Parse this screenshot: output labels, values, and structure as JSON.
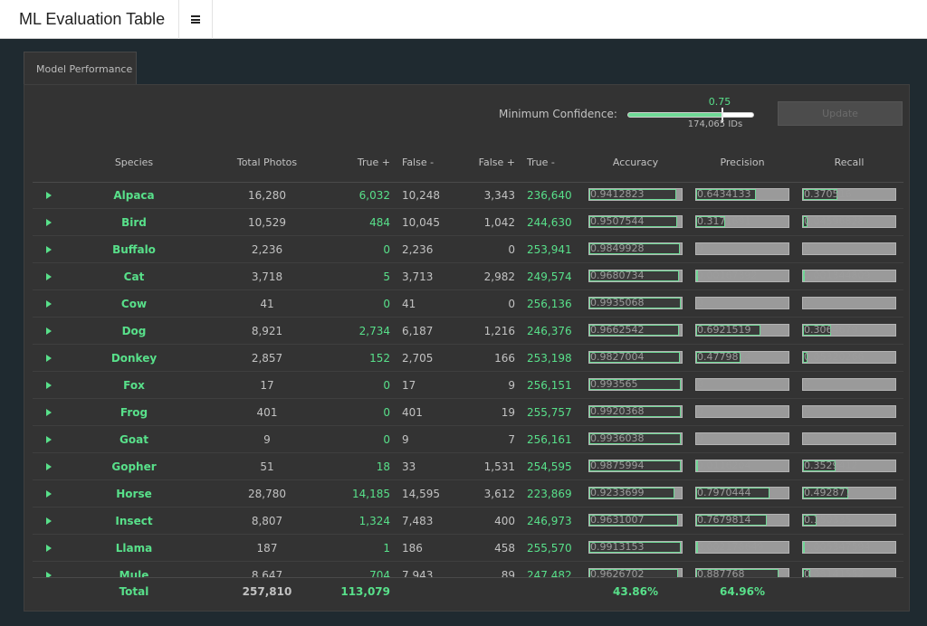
{
  "app": {
    "title": "ML Evaluation Table"
  },
  "tabs": [
    {
      "label": "Model Performance"
    }
  ],
  "controls": {
    "confidence_label": "Minimum Confidence:",
    "confidence_value": "0.75",
    "confidence_fraction": 0.75,
    "ids_label": "174,065 IDs",
    "update_label": "Update"
  },
  "columns": {
    "species": "Species",
    "total_photos": "Total Photos",
    "true_pos": "True +",
    "false_neg": "False -",
    "false_pos": "False +",
    "true_neg": "True -",
    "accuracy": "Accuracy",
    "precision": "Precision",
    "recall": "Recall"
  },
  "rows": [
    {
      "species": "Alpaca",
      "total": "16,280",
      "tp": "6,032",
      "fn": "10,248",
      "fp": "3,343",
      "tn": "236,640",
      "accuracy": "0.9412823",
      "precision": "0.6434133",
      "recall": "0.370516"
    },
    {
      "species": "Bird",
      "total": "10,529",
      "tp": "484",
      "fn": "10,045",
      "fp": "1,042",
      "tn": "244,630",
      "accuracy": "0.9507544",
      "precision": "0.3171691",
      "recall": "0.04596828"
    },
    {
      "species": "Buffalo",
      "total": "2,236",
      "tp": "0",
      "fn": "2,236",
      "fp": "0",
      "tn": "253,941",
      "accuracy": "0.9849928",
      "precision": "0",
      "recall": "0"
    },
    {
      "species": "Cat",
      "total": "3,718",
      "tp": "5",
      "fn": "3,713",
      "fp": "2,982",
      "tn": "249,574",
      "accuracy": "0.9680734",
      "precision": "0.00167392",
      "recall": "0.001344809"
    },
    {
      "species": "Cow",
      "total": "41",
      "tp": "0",
      "fn": "41",
      "fp": "0",
      "tn": "256,136",
      "accuracy": "0.9935068",
      "precision": "0",
      "recall": "0"
    },
    {
      "species": "Dog",
      "total": "8,921",
      "tp": "2,734",
      "fn": "6,187",
      "fp": "1,216",
      "tn": "246,376",
      "accuracy": "0.9662542",
      "precision": "0.6921519",
      "recall": "0.3064679"
    },
    {
      "species": "Donkey",
      "total": "2,857",
      "tp": "152",
      "fn": "2,705",
      "fp": "166",
      "tn": "253,198",
      "accuracy": "0.9827004",
      "precision": "0.4779874",
      "recall": "0.05320266"
    },
    {
      "species": "Fox",
      "total": "17",
      "tp": "0",
      "fn": "17",
      "fp": "9",
      "tn": "256,151",
      "accuracy": "0.993565",
      "precision": "0",
      "recall": "0"
    },
    {
      "species": "Frog",
      "total": "401",
      "tp": "0",
      "fn": "401",
      "fp": "19",
      "tn": "255,757",
      "accuracy": "0.9920368",
      "precision": "0",
      "recall": "0"
    },
    {
      "species": "Goat",
      "total": "9",
      "tp": "0",
      "fn": "9",
      "fp": "7",
      "tn": "256,161",
      "accuracy": "0.9936038",
      "precision": "0",
      "recall": "0"
    },
    {
      "species": "Gopher",
      "total": "51",
      "tp": "18",
      "fn": "33",
      "fp": "1,531",
      "tn": "254,595",
      "accuracy": "0.9875994",
      "precision": "0.0116204",
      "recall": "0.3529412"
    },
    {
      "species": "Horse",
      "total": "28,780",
      "tp": "14,185",
      "fn": "14,595",
      "fp": "3,612",
      "tn": "223,869",
      "accuracy": "0.9233699",
      "precision": "0.7970444",
      "recall": "0.492877"
    },
    {
      "species": "Insect",
      "total": "8,807",
      "tp": "1,324",
      "fn": "7,483",
      "fp": "400",
      "tn": "246,973",
      "accuracy": "0.9631007",
      "precision": "0.7679814",
      "recall": "0.150335"
    },
    {
      "species": "Llama",
      "total": "187",
      "tp": "1",
      "fn": "186",
      "fp": "458",
      "tn": "255,570",
      "accuracy": "0.9913153",
      "precision": "0.002178649",
      "recall": "0.005347594"
    },
    {
      "species": "Mule",
      "total": "8,647",
      "tp": "704",
      "fn": "7,943",
      "fp": "89",
      "tn": "247,482",
      "accuracy": "0.9626702",
      "precision": "0.887768",
      "recall": "0.08141552"
    }
  ],
  "footer": {
    "label": "Total",
    "total_photos": "257,810",
    "true_pos": "113,079",
    "accuracy": "43.86%",
    "precision": "64.96%"
  },
  "colors": {
    "accent": "#58e08a",
    "panel": "#333333",
    "background": "#1f2a30"
  }
}
